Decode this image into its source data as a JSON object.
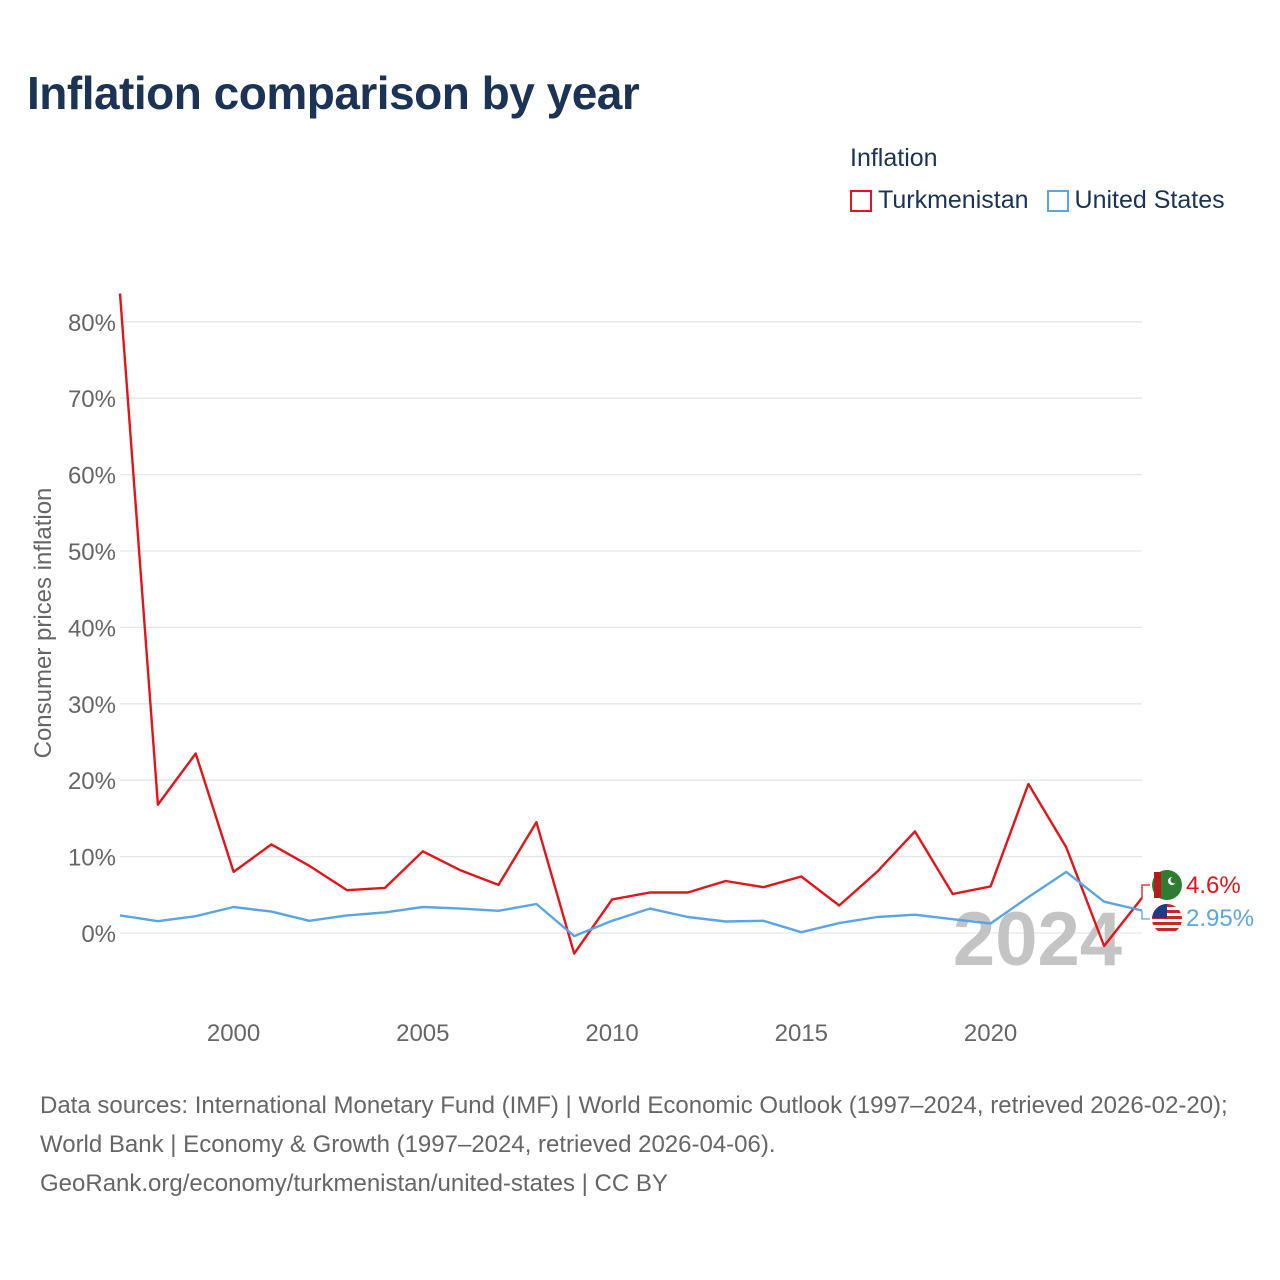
{
  "title": "Inflation comparison by year",
  "legend": {
    "title": "Inflation",
    "items": [
      {
        "label": "Turkmenistan",
        "color": "#e3151a"
      },
      {
        "label": "United States",
        "color": "#5ba4e5"
      }
    ]
  },
  "footer": {
    "sources": "Data sources: International Monetary Fund (IMF) | World Economic Outlook (1997–2024, retrieved 2026-02-20); World Bank | Economy & Growth (1997–2024, retrieved 2026-04-06).",
    "credit": "GeoRank.org/economy/turkmenistan/united-states | CC BY"
  },
  "chart_data": {
    "type": "line",
    "ylabel": "Consumer prices inflation",
    "xlabel": "",
    "xlim": [
      1997,
      2024
    ],
    "ylim": [
      -10,
      85
    ],
    "x_ticks": [
      2000,
      2005,
      2010,
      2015,
      2020
    ],
    "y_ticks": [
      0,
      10,
      20,
      30,
      40,
      50,
      60,
      70,
      80
    ],
    "y_tick_labels": [
      "0%",
      "10%",
      "20%",
      "30%",
      "40%",
      "50%",
      "60%",
      "70%",
      "80%"
    ],
    "watermark_year": "2024",
    "x": [
      1997,
      1998,
      1999,
      2000,
      2001,
      2002,
      2003,
      2004,
      2005,
      2006,
      2007,
      2008,
      2009,
      2010,
      2011,
      2012,
      2013,
      2014,
      2015,
      2016,
      2017,
      2018,
      2019,
      2020,
      2021,
      2022,
      2023,
      2024
    ],
    "series": [
      {
        "name": "Turkmenistan",
        "color": "#e3151a",
        "end_label": "4.6%",
        "values": [
          83.7,
          16.8,
          23.5,
          8.0,
          11.6,
          8.8,
          5.6,
          5.9,
          10.7,
          8.2,
          6.3,
          14.5,
          -2.7,
          4.4,
          5.3,
          5.3,
          6.8,
          6.0,
          7.4,
          3.6,
          8.0,
          13.3,
          5.1,
          6.1,
          19.5,
          11.2,
          -1.7,
          4.6
        ]
      },
      {
        "name": "United States",
        "color": "#5ba4e5",
        "end_label": "2.95%",
        "values": [
          2.3,
          1.55,
          2.2,
          3.4,
          2.8,
          1.6,
          2.3,
          2.7,
          3.4,
          3.2,
          2.9,
          3.8,
          -0.4,
          1.6,
          3.2,
          2.1,
          1.5,
          1.6,
          0.1,
          1.3,
          2.1,
          2.4,
          1.8,
          1.25,
          4.7,
          8.0,
          4.1,
          2.95
        ]
      }
    ]
  }
}
